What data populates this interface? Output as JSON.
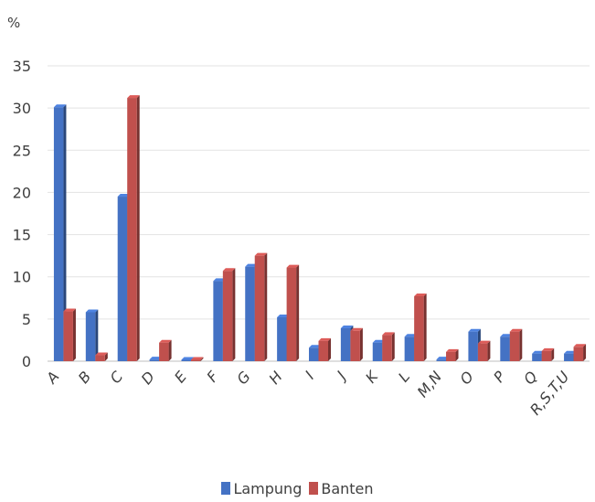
{
  "chart_data": {
    "type": "bar",
    "ylabel": "%",
    "ylim": [
      0,
      35
    ],
    "yticks": [
      0,
      5,
      10,
      15,
      20,
      25,
      30,
      35
    ],
    "grid": true,
    "legend_position": "bottom",
    "categories": [
      "A",
      "B",
      "C",
      "D",
      "E",
      "F",
      "G",
      "H",
      "I",
      "J",
      "K",
      "L",
      "M,N",
      "O",
      "P",
      "Q",
      "R,S,T,U"
    ],
    "series": [
      {
        "name": "Lampung",
        "color": "#4472C4",
        "values": [
          30.1,
          5.8,
          19.5,
          0.2,
          0.1,
          9.5,
          11.2,
          5.2,
          1.6,
          3.9,
          2.2,
          2.9,
          0.2,
          3.5,
          2.9,
          0.9,
          0.9
        ]
      },
      {
        "name": "Banten",
        "color": "#C0504D",
        "values": [
          5.9,
          0.7,
          31.2,
          2.2,
          0.1,
          10.7,
          12.5,
          11.1,
          2.4,
          3.6,
          3.1,
          7.7,
          1.1,
          2.1,
          3.5,
          1.2,
          1.7
        ]
      }
    ]
  }
}
